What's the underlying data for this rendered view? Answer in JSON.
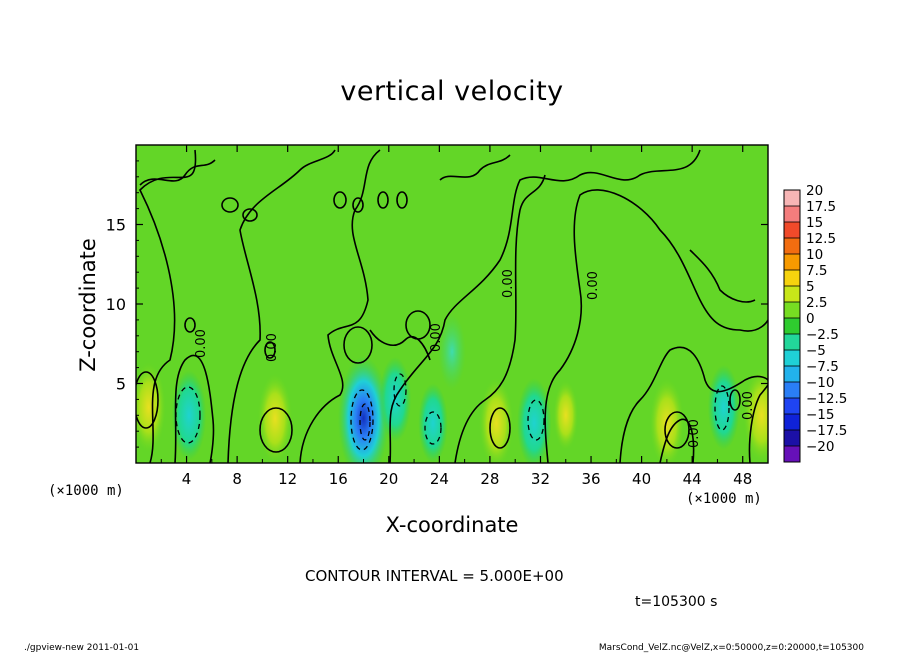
{
  "chart_data": {
    "type": "heatmap",
    "title": "vertical velocity",
    "xlabel": "X-coordinate",
    "ylabel": "Z-coordinate",
    "x_unit_left": "(×1000 m)",
    "x_unit_right": "(×1000 m)",
    "xlim": [
      0,
      50
    ],
    "ylim": [
      0,
      20
    ],
    "x_ticks": [
      4,
      8,
      12,
      16,
      20,
      24,
      28,
      32,
      36,
      40,
      44,
      48
    ],
    "y_ticks": [
      5,
      10,
      15
    ],
    "colorbar": {
      "levels": [
        "20",
        "17.5",
        "15",
        "12.5",
        "10",
        "7.5",
        "5",
        "2.5",
        "0",
        "−2.5",
        "−5",
        "−7.5",
        "−10",
        "−12.5",
        "−15",
        "−17.5",
        "−20"
      ],
      "colors": [
        "#f7b5b5",
        "#f47d7d",
        "#f04a2a",
        "#f26d10",
        "#f79a00",
        "#f6d30e",
        "#c8e619",
        "#77dd22",
        "#2fcc2f",
        "#22d79a",
        "#1fd0d6",
        "#22b2ec",
        "#2a7ef6",
        "#1f44f2",
        "#0f22d8",
        "#1c10a6",
        "#6610b8"
      ]
    },
    "contour_label": "0.00",
    "anomalies": [
      {
        "x": 1.0,
        "z": 3.5,
        "value": 6
      },
      {
        "x": 4.2,
        "z": 3.0,
        "value": -6
      },
      {
        "x": 11.0,
        "z": 2.8,
        "value": 6
      },
      {
        "x": 18.0,
        "z": 2.8,
        "value": -13
      },
      {
        "x": 20.5,
        "z": 4.0,
        "value": -5
      },
      {
        "x": 23.5,
        "z": 2.5,
        "value": -4
      },
      {
        "x": 25.0,
        "z": 7.0,
        "value": -3
      },
      {
        "x": 28.5,
        "z": 2.5,
        "value": 6
      },
      {
        "x": 31.5,
        "z": 2.5,
        "value": -6
      },
      {
        "x": 34.0,
        "z": 3.0,
        "value": 2
      },
      {
        "x": 42.0,
        "z": 2.5,
        "value": 6
      },
      {
        "x": 46.5,
        "z": 3.5,
        "value": -5
      },
      {
        "x": 49.5,
        "z": 3.0,
        "value": 7
      }
    ]
  },
  "annotations": {
    "contour_interval": "CONTOUR INTERVAL = 5.000E+00",
    "time": "t=105300  s",
    "footer_left": "./gpview-new   2011-01-01",
    "footer_right": "MarsCond_VelZ.nc@VelZ,x=0:50000,z=0:20000,t=105300"
  }
}
